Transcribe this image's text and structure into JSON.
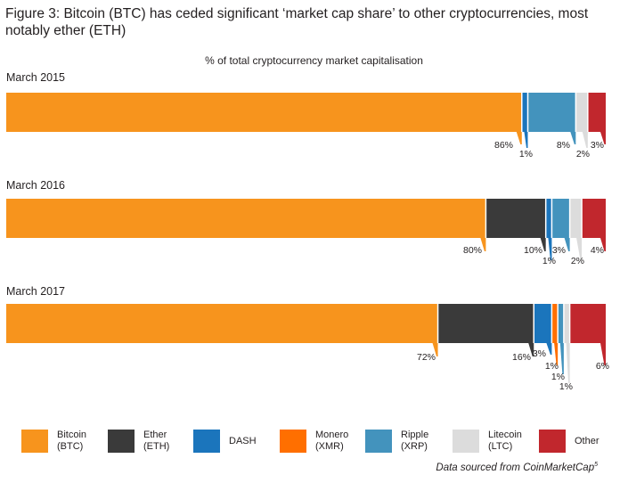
{
  "title": "Figure 3: Bitcoin (BTC) has ceded significant ‘market cap share’ to other cryptocurrencies, most notably ether (ETH)",
  "subtitle": "% of total cryptocurrency market capitalisation",
  "source_text": "Data sourced from CoinMarketCap",
  "source_note": "5",
  "chart_data": {
    "type": "bar",
    "orientation": "horizontal-stacked",
    "title": "% of total cryptocurrency market capitalisation",
    "categories": [
      "March 2015",
      "March 2016",
      "March 2017"
    ],
    "series": [
      {
        "name": "Bitcoin (BTC)",
        "color": "#f7941d",
        "values": [
          86,
          80,
          72
        ]
      },
      {
        "name": "Ether (ETH)",
        "color": "#3a3a3a",
        "values": [
          0,
          10,
          16
        ]
      },
      {
        "name": "DASH",
        "color": "#1b75bc",
        "values": [
          1,
          1,
          3
        ]
      },
      {
        "name": "Monero (XMR)",
        "color": "#ff6f00",
        "values": [
          0,
          0,
          1
        ]
      },
      {
        "name": "Ripple (XRP)",
        "color": "#4393bd",
        "values": [
          8,
          3,
          1
        ]
      },
      {
        "name": "Litecoin (LTC)",
        "color": "#dcdcdc",
        "values": [
          2,
          2,
          1
        ]
      },
      {
        "name": "Other",
        "color": "#c1272d",
        "values": [
          3,
          4,
          6
        ]
      }
    ],
    "data_labels": [
      [
        "86%",
        "1%",
        "8%",
        "2%",
        "3%"
      ],
      [
        "80%",
        "10%",
        "1%",
        "3%",
        "2%",
        "4%"
      ],
      [
        "72%",
        "16%",
        "3%",
        "1%",
        "1%",
        "1%",
        "6%"
      ]
    ],
    "legend_position": "bottom",
    "grid": false
  },
  "legend": [
    {
      "label": "Bitcoin\n(BTC)",
      "color": "#f7941d"
    },
    {
      "label": "Ether\n(ETH)",
      "color": "#3a3a3a"
    },
    {
      "label": "DASH",
      "color": "#1b75bc"
    },
    {
      "label": "Monero\n(XMR)",
      "color": "#ff6f00"
    },
    {
      "label": "Ripple\n(XRP)",
      "color": "#4393bd"
    },
    {
      "label": "Litecoin\n(LTC)",
      "color": "#dcdcdc"
    },
    {
      "label": "Other",
      "color": "#c1272d"
    }
  ]
}
